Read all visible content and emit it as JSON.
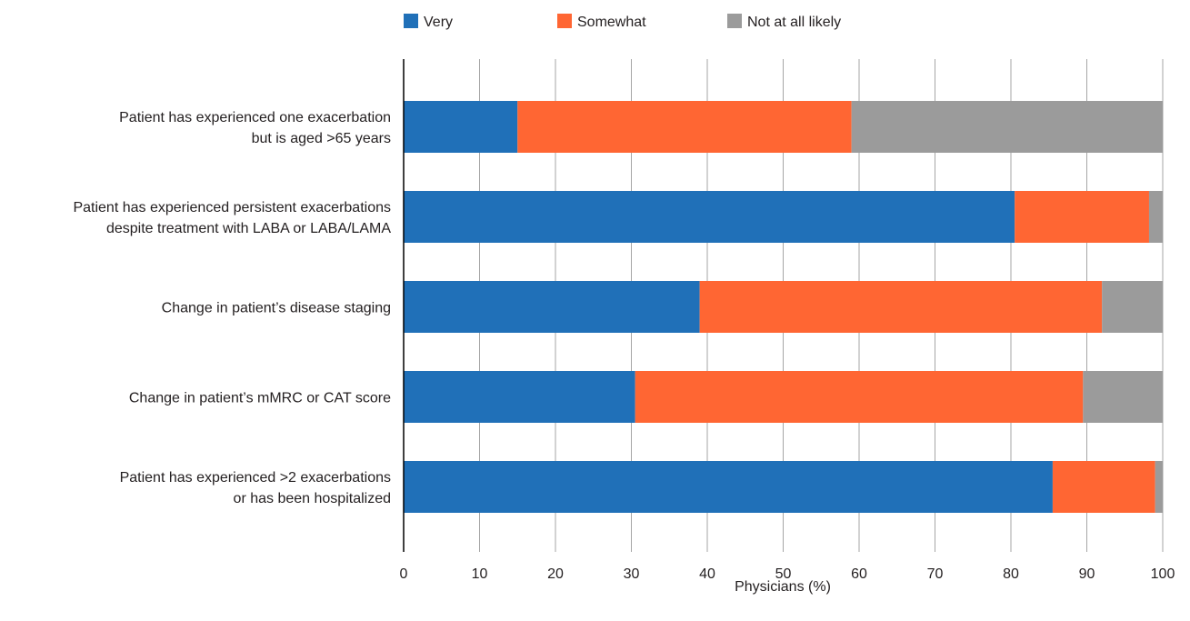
{
  "chart_data": {
    "type": "bar",
    "orientation": "horizontal",
    "stacked": true,
    "title": "",
    "xlabel": "Physicians (%)",
    "ylabel": "",
    "xlim": [
      0,
      100
    ],
    "xticks": [
      0,
      10,
      20,
      30,
      40,
      50,
      60,
      70,
      80,
      90,
      100
    ],
    "grid": true,
    "legend_position": "top",
    "categories": [
      [
        "Patient has experienced one exacerbation",
        "but is aged >65 years"
      ],
      [
        "Patient has experienced persistent exacerbations",
        "despite treatment with LABA or LABA/LAMA"
      ],
      [
        "Change in patient’s disease staging"
      ],
      [
        "Change in patient’s mMRC or CAT score"
      ],
      [
        "Patient has experienced >2 exacerbations",
        "or has been hospitalized"
      ]
    ],
    "series": [
      {
        "name": "Very",
        "color": "#2070b8",
        "values": [
          15,
          80.5,
          39,
          30.5,
          85.5
        ]
      },
      {
        "name": "Somewhat",
        "color": "#ff6633",
        "values": [
          44,
          17.7,
          53,
          59,
          13.5
        ]
      },
      {
        "name": "Not at all likely",
        "color": "#9b9b9b",
        "values": [
          41,
          1.8,
          8,
          10.5,
          1
        ]
      }
    ]
  }
}
